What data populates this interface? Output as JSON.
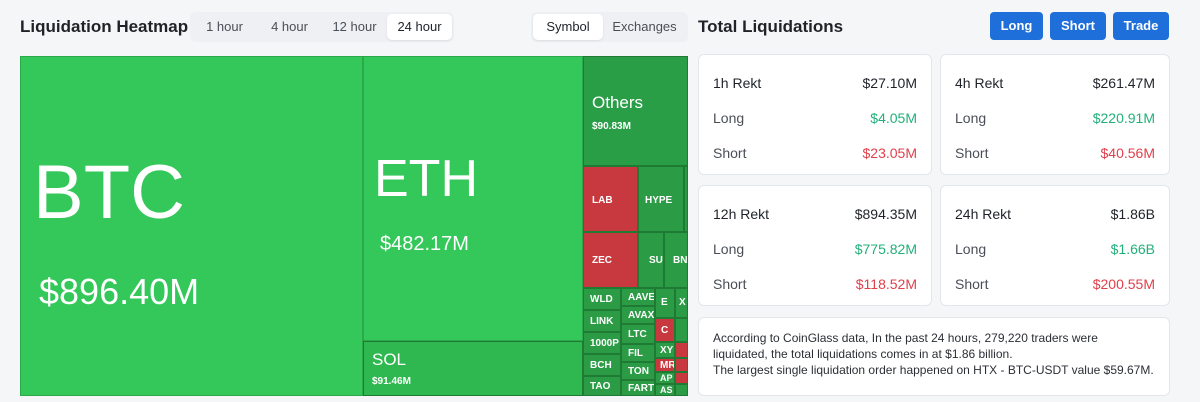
{
  "heatmap": {
    "title": "Liquidation Heatmap",
    "time_options": [
      "1 hour",
      "4 hour",
      "12 hour",
      "24 hour"
    ],
    "time_selected": "24 hour",
    "mode_options": [
      "Symbol",
      "Exchanges"
    ],
    "mode_selected": "Symbol",
    "tiles": {
      "btc": {
        "symbol": "BTC",
        "value": "$896.40M"
      },
      "eth": {
        "symbol": "ETH",
        "value": "$482.17M"
      },
      "sol": {
        "symbol": "SOL",
        "value": "$91.46M"
      },
      "others": {
        "symbol": "Others",
        "value": "$90.83M"
      },
      "lab": "LAB",
      "hype": "HYPE",
      "zec": "ZEC",
      "sui": "SUI",
      "bnb": "BN",
      "wld": "WLD",
      "aave": "AAVE",
      "link": "LINK",
      "avax": "AVAX",
      "p1000": "1000P",
      "ltc": "LTC",
      "bch": "BCH",
      "fil": "FIL",
      "tao": "TAO",
      "ton": "TON",
      "fart": "FART",
      "xy": "XY",
      "mr": "MR",
      "ap": "AP",
      "as": "AS",
      "c": "C",
      "e": "E",
      "x": "X"
    }
  },
  "totals": {
    "title": "Total Liquidations",
    "buttons": {
      "long": "Long",
      "short": "Short",
      "trade": "Trade"
    },
    "long_label": "Long",
    "short_label": "Short",
    "cards": {
      "h1": {
        "label": "1h Rekt",
        "total": "$27.10M",
        "long": "$4.05M",
        "short": "$23.05M"
      },
      "h4": {
        "label": "4h Rekt",
        "total": "$261.47M",
        "long": "$220.91M",
        "short": "$40.56M"
      },
      "h12": {
        "label": "12h Rekt",
        "total": "$894.35M",
        "long": "$775.82M",
        "short": "$118.52M"
      },
      "h24": {
        "label": "24h Rekt",
        "total": "$1.86B",
        "long": "$1.66B",
        "short": "$200.55M"
      }
    },
    "note_line1": "According to CoinGlass data, In the past 24 hours, 279,220 traders were liquidated, the total liquidations comes in at $1.86 billion.",
    "note_line2": "The largest single liquidation order happened on HTX - BTC-USDT value $59.67M.",
    "colors": {
      "up": "#21b07a",
      "down": "#e0404b",
      "accent": "#1e6fd9"
    }
  }
}
